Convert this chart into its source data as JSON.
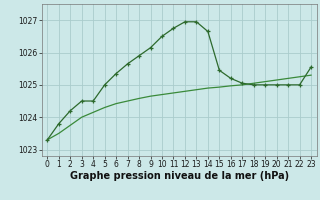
{
  "background_color": "#cce8e8",
  "grid_color": "#aacccc",
  "line_color": "#2d6a2d",
  "line_color2": "#3a8a3a",
  "xlabel": "Graphe pression niveau de la mer (hPa)",
  "xlim": [
    -0.5,
    23.5
  ],
  "ylim": [
    1022.8,
    1027.5
  ],
  "yticks": [
    1023,
    1024,
    1025,
    1026,
    1027
  ],
  "xticks": [
    0,
    1,
    2,
    3,
    4,
    5,
    6,
    7,
    8,
    9,
    10,
    11,
    12,
    13,
    14,
    15,
    16,
    17,
    18,
    19,
    20,
    21,
    22,
    23
  ],
  "series1_x": [
    0,
    1,
    2,
    3,
    4,
    5,
    6,
    7,
    8,
    9,
    10,
    11,
    12,
    13,
    14,
    15,
    16,
    17,
    18,
    19,
    20,
    21,
    22,
    23
  ],
  "series1_y": [
    1023.3,
    1023.8,
    1024.2,
    1024.5,
    1024.5,
    1025.0,
    1025.35,
    1025.65,
    1025.9,
    1026.15,
    1026.5,
    1026.75,
    1026.95,
    1026.95,
    1026.65,
    1025.45,
    1025.2,
    1025.05,
    1025.0,
    1025.0,
    1025.0,
    1025.0,
    1025.0,
    1025.55
  ],
  "series2_x": [
    0,
    1,
    2,
    3,
    4,
    5,
    6,
    7,
    8,
    9,
    10,
    11,
    12,
    13,
    14,
    15,
    16,
    17,
    18,
    19,
    20,
    21,
    22,
    23
  ],
  "series2_y": [
    1023.3,
    1023.5,
    1023.75,
    1024.0,
    1024.15,
    1024.3,
    1024.42,
    1024.5,
    1024.58,
    1024.65,
    1024.7,
    1024.75,
    1024.8,
    1024.85,
    1024.9,
    1024.93,
    1024.97,
    1025.0,
    1025.05,
    1025.1,
    1025.15,
    1025.2,
    1025.25,
    1025.3
  ],
  "tick_fontsize": 5.5,
  "label_fontsize": 7.0
}
